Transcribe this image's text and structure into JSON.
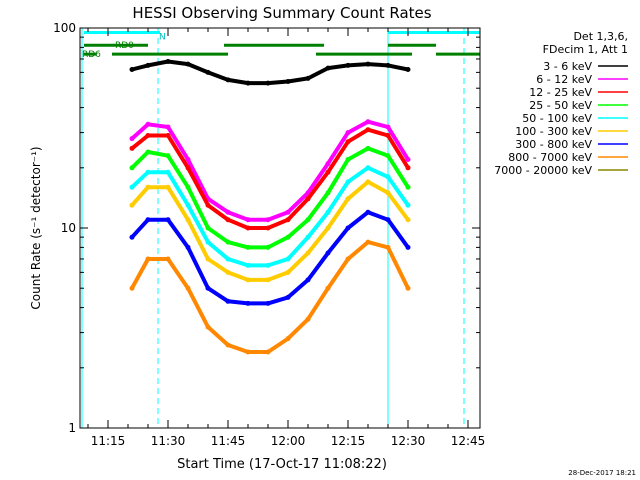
{
  "chart_data": {
    "type": "line",
    "title": "HESSI Observing Summary Count Rates",
    "xlabel": "Start Time (17-Oct-17 11:08:22)",
    "ylabel": "Count Rate (s⁻¹ detector⁻¹)",
    "yscale": "log",
    "ylim": [
      1,
      100
    ],
    "xlim_minutes": [
      "11:08",
      "12:48"
    ],
    "x_ticks": [
      "11:15",
      "11:30",
      "11:45",
      "12:00",
      "12:15",
      "12:30",
      "12:45"
    ],
    "y_ticks": [
      "1",
      "10",
      "100"
    ],
    "grid": false,
    "legend_position": "right",
    "legend_header": [
      "Det 1,3,6,",
      "FDecim 1, Att 1"
    ],
    "x_times": [
      "11:21",
      "11:25",
      "11:30",
      "11:35",
      "11:40",
      "11:45",
      "11:50",
      "11:55",
      "12:00",
      "12:05",
      "12:10",
      "12:15",
      "12:20",
      "12:25",
      "12:30"
    ],
    "series": [
      {
        "name": "3 - 6 keV",
        "color": "#000000",
        "values": [
          62,
          65,
          68,
          66,
          60,
          55,
          53,
          53,
          54,
          56,
          63,
          65,
          66,
          65,
          62
        ]
      },
      {
        "name": "6 - 12 keV",
        "color": "#ff00ff",
        "values": [
          28,
          33,
          32,
          22,
          14,
          12,
          11,
          11,
          12,
          15,
          21,
          30,
          34,
          32,
          22
        ]
      },
      {
        "name": "12 - 25 keV",
        "color": "#ff0000",
        "values": [
          25,
          29,
          29,
          20,
          13,
          11,
          10,
          10,
          11,
          14,
          19,
          27,
          31,
          29,
          20
        ]
      },
      {
        "name": "25 - 50 keV",
        "color": "#00ff00",
        "values": [
          20,
          24,
          23,
          16,
          10,
          8.5,
          8,
          8,
          9,
          11,
          15,
          22,
          25,
          23,
          16
        ]
      },
      {
        "name": "50 - 100 keV",
        "color": "#00ffff",
        "values": [
          16,
          19,
          19,
          13,
          8.5,
          7,
          6.5,
          6.5,
          7,
          9,
          12,
          17,
          20,
          18,
          13
        ]
      },
      {
        "name": "100 - 300 keV",
        "color": "#ffcc00",
        "values": [
          13,
          16,
          16,
          11,
          7,
          6,
          5.5,
          5.5,
          6,
          7.5,
          10,
          14,
          17,
          15,
          11
        ]
      },
      {
        "name": "300 - 800 keV",
        "color": "#0000ff",
        "values": [
          9,
          11,
          11,
          8,
          5,
          4.3,
          4.2,
          4.2,
          4.5,
          5.5,
          7.5,
          10,
          12,
          11,
          8
        ]
      },
      {
        "name": "800 - 7000 keV",
        "color": "#ff8800",
        "values": [
          5,
          7,
          7,
          5,
          3.2,
          2.6,
          2.4,
          2.4,
          2.8,
          3.5,
          5,
          7,
          8.5,
          8,
          5
        ]
      },
      {
        "name": "7000 - 20000 keV",
        "color": "#888800",
        "values": []
      }
    ],
    "segments": [
      {
        "label": "N",
        "color": "#00ffff",
        "level": 95,
        "ranges": [
          [
            "11:09",
            "11:28"
          ],
          [
            "12:25",
            "12:48"
          ]
        ]
      },
      {
        "label": "RD0",
        "color": "#008000",
        "level": 82,
        "ranges": [
          [
            "11:09",
            "11:25"
          ],
          [
            "11:44",
            "12:09"
          ],
          [
            "12:25",
            "12:37"
          ]
        ]
      },
      {
        "label": "RD6",
        "color": "#008000",
        "level": 74,
        "ranges": [
          [
            "11:09",
            "11:12"
          ],
          [
            "11:16",
            "11:45"
          ],
          [
            "12:07",
            "12:31"
          ],
          [
            "12:37",
            "12:48"
          ]
        ]
      }
    ],
    "vlines": [
      {
        "time": "11:08.5",
        "color": "#00ffff",
        "style": "solid"
      },
      {
        "time": "11:27.5",
        "color": "#00ffff",
        "style": "dashed"
      },
      {
        "time": "12:25",
        "color": "#00ffff",
        "style": "solid"
      },
      {
        "time": "12:44",
        "color": "#00ffff",
        "style": "dashed"
      }
    ]
  },
  "timestamp": "28-Dec-2017 18:21"
}
